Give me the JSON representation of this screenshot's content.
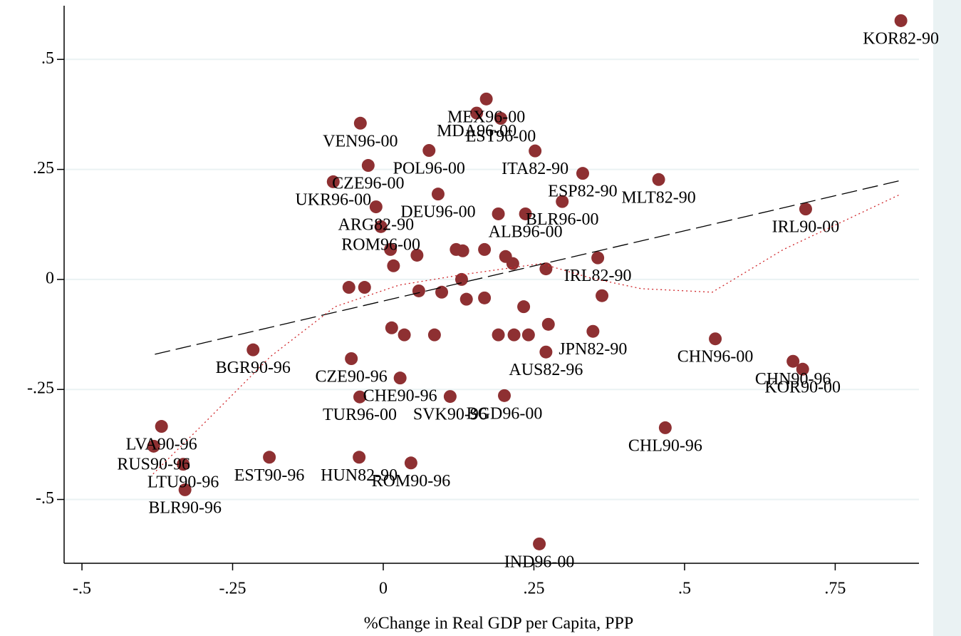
{
  "chart_data": {
    "type": "scatter",
    "x_label": "%Change in Real GDP per Capita, PPP",
    "color": "#8e3032",
    "xlim": [
      -0.5296,
      0.889
    ],
    "ylim": [
      -0.645,
      0.622
    ],
    "xticks": [
      {
        "value": -0.5,
        "label": "-.5"
      },
      {
        "value": -0.25,
        "label": "-.25"
      },
      0,
      {
        "value": 0.25,
        "label": ".25"
      },
      {
        "value": 0.5,
        "label": ".5"
      },
      {
        "value": 0.75,
        "label": ".75"
      }
    ],
    "yticks": [
      {
        "value": -0.5,
        "label": "-.5"
      },
      {
        "value": -0.25,
        "label": "-.25"
      },
      0,
      {
        "value": 0.25,
        "label": ".25"
      },
      {
        "value": 0.5,
        "label": ".5"
      }
    ],
    "grid": true,
    "x": [
      0.859,
      0.701,
      0.457,
      0.551,
      0.68,
      0.696,
      0.468,
      0.259,
      -0.216,
      -0.368,
      -0.381,
      -0.332,
      -0.329,
      -0.189,
      -0.04,
      0.046,
      -0.038,
      0.171,
      0.155,
      0.195,
      0.252,
      0.331,
      0.297,
      0.236,
      0.356,
      0.348,
      0.27,
      -0.025,
      -0.083,
      0.091,
      -0.012,
      -0.004,
      0.076,
      0.201,
      0.028,
      -0.053,
      0.111,
      -0.039,
      0.012,
      0.017,
      0.059,
      0.097,
      0.13,
      0.138,
      0.168,
      0.203,
      0.215,
      0.233,
      0.241,
      0.274,
      0.27,
      -0.057,
      -0.031,
      0.056,
      0.121,
      0.191,
      0.132,
      0.035,
      0.085,
      0.191,
      0.014,
      0.168,
      0.363,
      0.217
    ],
    "y": [
      0.588,
      0.16,
      0.227,
      -0.135,
      -0.186,
      -0.204,
      -0.337,
      -0.601,
      -0.16,
      -0.334,
      -0.379,
      -0.42,
      -0.478,
      -0.404,
      -0.404,
      -0.417,
      0.355,
      0.41,
      0.378,
      0.366,
      0.292,
      0.241,
      0.177,
      0.149,
      0.049,
      -0.118,
      -0.165,
      0.259,
      0.222,
      0.194,
      0.165,
      0.12,
      0.293,
      -0.264,
      -0.224,
      -0.18,
      -0.266,
      -0.267,
      0.068,
      0.031,
      -0.026,
      -0.029,
      0.0,
      -0.045,
      -0.042,
      0.052,
      0.036,
      -0.062,
      -0.126,
      -0.102,
      0.024,
      -0.018,
      -0.018,
      0.055,
      0.068,
      0.149,
      0.065,
      -0.126,
      -0.126,
      -0.126,
      -0.11,
      0.068,
      -0.037,
      -0.126
    ],
    "labels": [
      "KOR82-90",
      "IRL90-00",
      "MLT82-90",
      "CHN96-00",
      "CHN90-96",
      "KOR90-00",
      "CHL90-96",
      "IND96-00",
      "BGR90-96",
      "LVA90-96",
      "RUS90-96",
      "LTU90-96",
      "BLR90-96",
      "EST90-96",
      "HUN82-90",
      "ROM90-96",
      "VEN96-00",
      "MEX96-00",
      "MDA96-00",
      "EST96-00",
      "ITA82-90",
      "ESP82-90",
      "BLR96-00",
      "ALB96-00",
      "IRL82-90",
      "JPN82-90",
      "AUS82-96",
      "CZE96-00",
      "UKR96-00",
      "DEU96-00",
      "ARG82-90",
      "ROM96-00",
      "POL96-00",
      "BGD96-00",
      "CHE90-96",
      "CZE90-96",
      "SVK90-96",
      "TUR96-00",
      null,
      null,
      null,
      null,
      null,
      null,
      null,
      null,
      null,
      null,
      null,
      null,
      null,
      null,
      null,
      null,
      null,
      null,
      null,
      null,
      null,
      null,
      null,
      null,
      null,
      null
    ],
    "fit_lines": [
      {
        "style": "dashed",
        "color": "#000000",
        "x": [
          -0.379,
          0.859
        ],
        "y": [
          -0.17,
          0.225
        ]
      },
      {
        "style": "dotted",
        "color": "#d0272b",
        "x": [
          -0.382,
          -0.293,
          -0.187,
          -0.08,
          0.026,
          0.132,
          0.262,
          0.345,
          0.428,
          0.546,
          0.664,
          0.859
        ],
        "y": [
          -0.442,
          -0.321,
          -0.175,
          -0.062,
          -0.013,
          0.011,
          0.036,
          0.003,
          -0.021,
          -0.029,
          0.068,
          0.194
        ]
      }
    ]
  }
}
